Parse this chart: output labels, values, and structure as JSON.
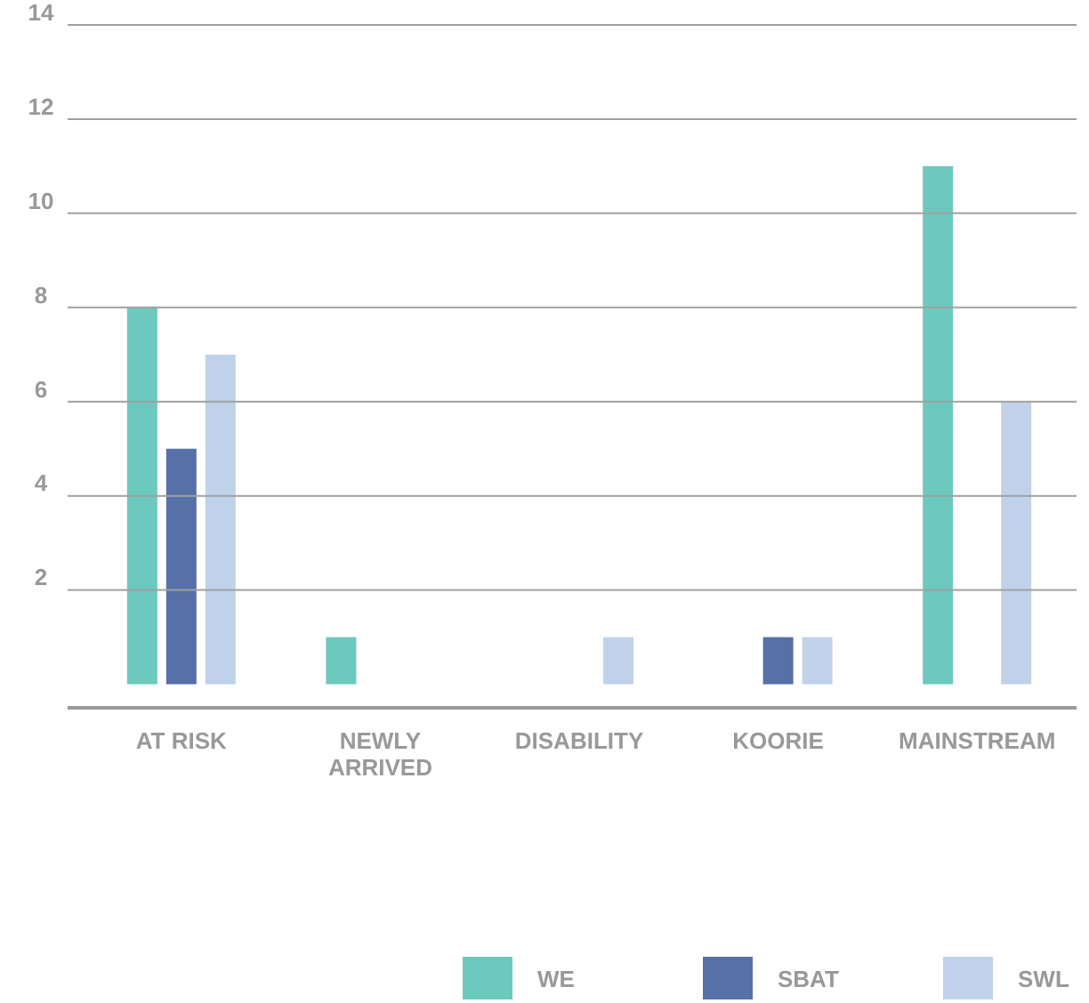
{
  "chart_data": {
    "type": "bar",
    "categories": [
      "AT RISK",
      "NEWLY ARRIVED",
      "DISABILITY",
      "KOORIE",
      "MAINSTREAM"
    ],
    "series": [
      {
        "name": "WE",
        "color": "#6cc9be",
        "values": [
          8,
          1,
          0,
          0,
          11
        ]
      },
      {
        "name": "SBAT",
        "color": "#5670a8",
        "values": [
          5,
          0,
          0,
          1,
          0
        ]
      },
      {
        "name": "SWL",
        "color": "#c0d2ea",
        "values": [
          7,
          0,
          1,
          1,
          6
        ]
      }
    ],
    "ylim": [
      -0.5,
      14
    ],
    "yticks": [
      2,
      4,
      6,
      8,
      10,
      12,
      14
    ],
    "grid": "y",
    "legend": "bottom right"
  }
}
